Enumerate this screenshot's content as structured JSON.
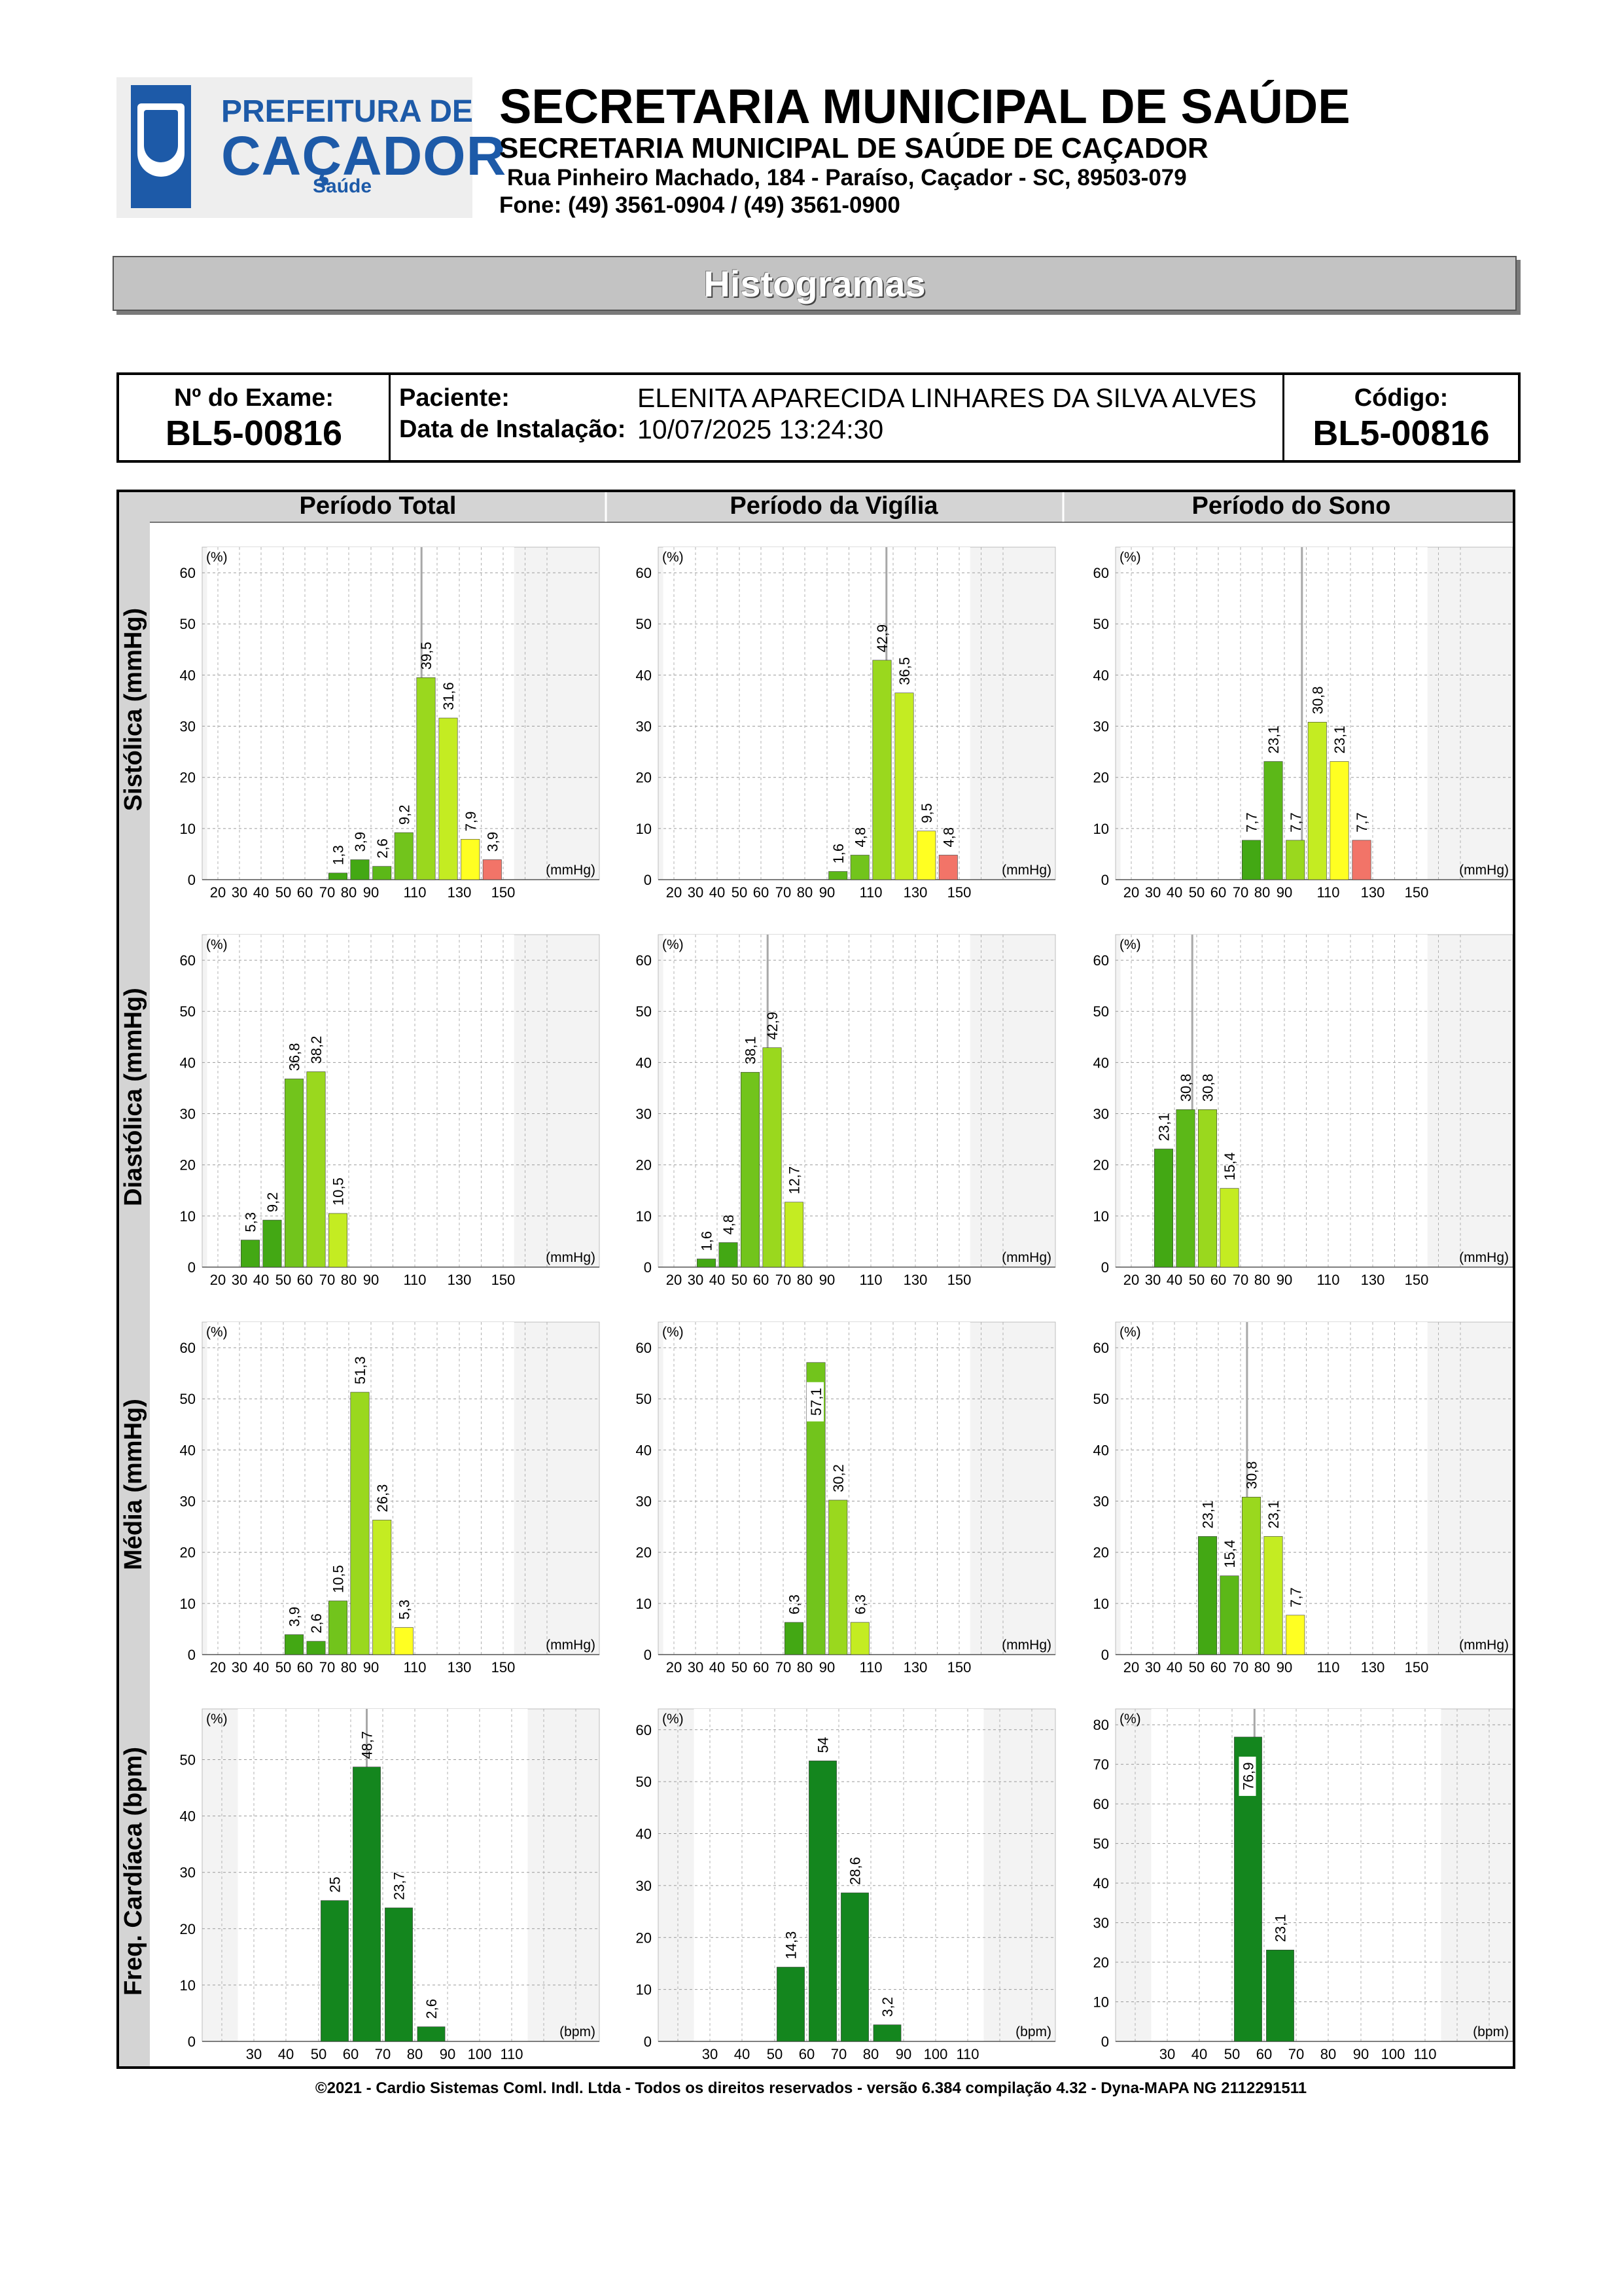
{
  "header": {
    "logo_line1": "PREFEITURA DE",
    "logo_line2": "CAÇADOR",
    "logo_line3": "Saúde",
    "title": "SECRETARIA MUNICIPAL DE SAÚDE",
    "subtitle": "SECRETARIA MUNICIPAL DE SAÚDE DE CAÇADOR",
    "address": "Rua Pinheiro Machado, 184 - Paraíso, Caçador - SC, 89503-079",
    "phone": "Fone: (49) 3561-0904  / (49) 3561-0900"
  },
  "banner": "Histogramas",
  "info": {
    "exam_label": "Nº do Exame:",
    "exam_value": "BL5-00816",
    "patient_label": "Paciente:",
    "patient_value": "ELENITA APARECIDA LINHARES DA SILVA ALVES",
    "install_label": "Data de Instalação:",
    "install_value": "10/07/2025 13:24:30",
    "code_label": "Código:",
    "code_value": "BL5-00816"
  },
  "columns": [
    "Período Total",
    "Período da Vigília",
    "Período do Sono"
  ],
  "rows": [
    {
      "label": "Sistólica (mmHg)",
      "unit": "(mmHg)",
      "ticks": [
        "20",
        "30",
        "40",
        "50",
        "60",
        "70",
        "80",
        "90",
        "110",
        "130",
        "150"
      ]
    },
    {
      "label": "Diastólica (mmHg)",
      "unit": "(mmHg)",
      "ticks": [
        "20",
        "30",
        "40",
        "50",
        "60",
        "70",
        "80",
        "90",
        "110",
        "130",
        "150"
      ]
    },
    {
      "label": "Média (mmHg)",
      "unit": "(mmHg)",
      "ticks": [
        "20",
        "30",
        "40",
        "50",
        "60",
        "70",
        "80",
        "90",
        "110",
        "130",
        "150"
      ]
    },
    {
      "label": "Freq. Cardíaca (bpm)",
      "unit": "(bpm)",
      "ticks": [
        "30",
        "40",
        "50",
        "60",
        "70",
        "80",
        "90",
        "100",
        "110"
      ]
    }
  ],
  "y_unit": "(%)",
  "chart_data": [
    {
      "type": "bar",
      "row": "Sistólica (mmHg)",
      "column": "Período Total",
      "ylim": [
        0,
        65
      ],
      "yticks": [
        0,
        10,
        20,
        30,
        40,
        50,
        60
      ],
      "bars": [
        {
          "x": 70,
          "value": 1.3,
          "color": "#43a814"
        },
        {
          "x": 80,
          "value": 3.9,
          "color": "#43a814"
        },
        {
          "x": 90,
          "value": 2.6,
          "color": "#5cb818"
        },
        {
          "x": 100,
          "value": 9.2,
          "color": "#72c41c"
        },
        {
          "x": 110,
          "value": 39.5,
          "color": "#9ad81e"
        },
        {
          "x": 120,
          "value": 31.6,
          "color": "#c4ec22"
        },
        {
          "x": 130,
          "value": 7.9,
          "color": "#ffff22"
        },
        {
          "x": 140,
          "value": 3.9,
          "color": "#f27468"
        }
      ],
      "labels": [
        "1,3",
        "3,9",
        "2,6",
        "9,2",
        "39,5",
        "31,6",
        "7,9",
        "3,9"
      ],
      "mean_line": 113
    },
    {
      "type": "bar",
      "row": "Sistólica (mmHg)",
      "column": "Período da Vigília",
      "ylim": [
        0,
        65
      ],
      "yticks": [
        0,
        10,
        20,
        30,
        40,
        50,
        60
      ],
      "bars": [
        {
          "x": 90,
          "value": 1.6,
          "color": "#5cb818"
        },
        {
          "x": 100,
          "value": 4.8,
          "color": "#72c41c"
        },
        {
          "x": 110,
          "value": 42.9,
          "color": "#9ad81e"
        },
        {
          "x": 120,
          "value": 36.5,
          "color": "#c4ec22"
        },
        {
          "x": 130,
          "value": 9.5,
          "color": "#ffff22"
        },
        {
          "x": 140,
          "value": 4.8,
          "color": "#f27468"
        }
      ],
      "labels": [
        "1,6",
        "4,8",
        "42,9",
        "36,5",
        "9,5",
        "4,8"
      ],
      "mean_line": 117
    },
    {
      "type": "bar",
      "row": "Sistólica (mmHg)",
      "column": "Período do Sono",
      "ylim": [
        0,
        65
      ],
      "yticks": [
        0,
        10,
        20,
        30,
        40,
        50,
        60
      ],
      "bars": [
        {
          "x": 70,
          "value": 7.7,
          "color": "#43a814"
        },
        {
          "x": 80,
          "value": 23.1,
          "color": "#5cb818"
        },
        {
          "x": 90,
          "value": 7.7,
          "color": "#9ad81e"
        },
        {
          "x": 100,
          "value": 30.8,
          "color": "#c4ec22"
        },
        {
          "x": 110,
          "value": 23.1,
          "color": "#ffff22"
        },
        {
          "x": 120,
          "value": 7.7,
          "color": "#f27468"
        }
      ],
      "labels": [
        "7,7",
        "23,1",
        "7,7",
        "30,8",
        "23,1",
        "7,7"
      ],
      "mean_line": 98
    },
    {
      "type": "bar",
      "row": "Diastólica (mmHg)",
      "column": "Período Total",
      "ylim": [
        0,
        65
      ],
      "yticks": [
        0,
        10,
        20,
        30,
        40,
        50,
        60
      ],
      "bars": [
        {
          "x": 30,
          "value": 5.3,
          "color": "#43a814"
        },
        {
          "x": 40,
          "value": 9.2,
          "color": "#43a814"
        },
        {
          "x": 50,
          "value": 36.8,
          "color": "#72c41c"
        },
        {
          "x": 60,
          "value": 38.2,
          "color": "#9ad81e"
        },
        {
          "x": 70,
          "value": 10.5,
          "color": "#c4ec22"
        }
      ],
      "labels": [
        "5,3",
        "9,2",
        "36,8",
        "38,2",
        "10,5"
      ],
      "mean_line": null
    },
    {
      "type": "bar",
      "row": "Diastólica (mmHg)",
      "column": "Período da Vigília",
      "ylim": [
        0,
        65
      ],
      "yticks": [
        0,
        10,
        20,
        30,
        40,
        50,
        60
      ],
      "bars": [
        {
          "x": 30,
          "value": 1.6,
          "color": "#43a814"
        },
        {
          "x": 40,
          "value": 4.8,
          "color": "#43a814"
        },
        {
          "x": 50,
          "value": 38.1,
          "color": "#72c41c"
        },
        {
          "x": 60,
          "value": 42.9,
          "color": "#9ad81e"
        },
        {
          "x": 70,
          "value": 12.7,
          "color": "#c4ec22"
        }
      ],
      "labels": [
        "1,6",
        "4,8",
        "38,1",
        "42,9",
        "12,7"
      ],
      "mean_line": 63
    },
    {
      "type": "bar",
      "row": "Diastólica (mmHg)",
      "column": "Período do Sono",
      "ylim": [
        0,
        65
      ],
      "yticks": [
        0,
        10,
        20,
        30,
        40,
        50,
        60
      ],
      "bars": [
        {
          "x": 30,
          "value": 23.1,
          "color": "#43a814"
        },
        {
          "x": 40,
          "value": 30.8,
          "color": "#5cb818"
        },
        {
          "x": 50,
          "value": 30.8,
          "color": "#9ad81e"
        },
        {
          "x": 60,
          "value": 15.4,
          "color": "#c4ec22"
        }
      ],
      "labels": [
        "23,1",
        "30,8",
        "30,8",
        "15,4"
      ],
      "mean_line": 48
    },
    {
      "type": "bar",
      "row": "Média (mmHg)",
      "column": "Período Total",
      "ylim": [
        0,
        65
      ],
      "yticks": [
        0,
        10,
        20,
        30,
        40,
        50,
        60
      ],
      "bars": [
        {
          "x": 50,
          "value": 3.9,
          "color": "#43a814"
        },
        {
          "x": 60,
          "value": 2.6,
          "color": "#43a814"
        },
        {
          "x": 70,
          "value": 10.5,
          "color": "#72c41c"
        },
        {
          "x": 80,
          "value": 51.3,
          "color": "#9ad81e"
        },
        {
          "x": 90,
          "value": 26.3,
          "color": "#c4ec22"
        },
        {
          "x": 100,
          "value": 5.3,
          "color": "#ffff22"
        }
      ],
      "labels": [
        "3,9",
        "2,6",
        "10,5",
        "51,3",
        "26,3",
        "5,3"
      ],
      "mean_line": null
    },
    {
      "type": "bar",
      "row": "Média (mmHg)",
      "column": "Período da Vigília",
      "ylim": [
        0,
        65
      ],
      "yticks": [
        0,
        10,
        20,
        30,
        40,
        50,
        60
      ],
      "bars": [
        {
          "x": 70,
          "value": 6.3,
          "color": "#43a814"
        },
        {
          "x": 80,
          "value": 57.1,
          "color": "#72c41c"
        },
        {
          "x": 90,
          "value": 30.2,
          "color": "#9ad81e"
        },
        {
          "x": 100,
          "value": 6.3,
          "color": "#c4ec22"
        }
      ],
      "labels": [
        "6,3",
        "57,1",
        "30,2",
        "6,3"
      ],
      "mean_line": null
    },
    {
      "type": "bar",
      "row": "Média (mmHg)",
      "column": "Período do Sono",
      "ylim": [
        0,
        65
      ],
      "yticks": [
        0,
        10,
        20,
        30,
        40,
        50,
        60
      ],
      "bars": [
        {
          "x": 50,
          "value": 23.1,
          "color": "#43a814"
        },
        {
          "x": 60,
          "value": 15.4,
          "color": "#5cb818"
        },
        {
          "x": 70,
          "value": 30.8,
          "color": "#9ad81e"
        },
        {
          "x": 80,
          "value": 23.1,
          "color": "#c4ec22"
        },
        {
          "x": 90,
          "value": 7.7,
          "color": "#ffff22"
        }
      ],
      "labels": [
        "23,1",
        "15,4",
        "30,8",
        "23,1",
        "7,7"
      ],
      "mean_line": 73
    },
    {
      "type": "bar",
      "row": "Freq. Cardíaca (bpm)",
      "column": "Período Total",
      "ylim": [
        0,
        59
      ],
      "yticks": [
        0,
        10,
        20,
        30,
        40,
        50
      ],
      "bars": [
        {
          "x": 50,
          "value": 25,
          "color": "#14861e"
        },
        {
          "x": 60,
          "value": 48.7,
          "color": "#14861e"
        },
        {
          "x": 70,
          "value": 23.7,
          "color": "#14861e"
        },
        {
          "x": 80,
          "value": 2.6,
          "color": "#14861e"
        }
      ],
      "labels": [
        "25",
        "48,7",
        "23,7",
        "2,6"
      ],
      "mean_line": 65
    },
    {
      "type": "bar",
      "row": "Freq. Cardíaca (bpm)",
      "column": "Período da Vigília",
      "ylim": [
        0,
        64
      ],
      "yticks": [
        0,
        10,
        20,
        30,
        40,
        50,
        60
      ],
      "bars": [
        {
          "x": 50,
          "value": 14.3,
          "color": "#14861e"
        },
        {
          "x": 60,
          "value": 54,
          "color": "#14861e"
        },
        {
          "x": 70,
          "value": 28.6,
          "color": "#14861e"
        },
        {
          "x": 80,
          "value": 3.2,
          "color": "#14861e"
        }
      ],
      "labels": [
        "14,3",
        "54",
        "28,6",
        "3,2"
      ],
      "mean_line": null
    },
    {
      "type": "bar",
      "row": "Freq. Cardíaca (bpm)",
      "column": "Período do Sono",
      "ylim": [
        0,
        84
      ],
      "yticks": [
        0,
        10,
        20,
        30,
        40,
        50,
        60,
        70,
        80
      ],
      "bars": [
        {
          "x": 50,
          "value": 76.9,
          "color": "#14861e"
        },
        {
          "x": 60,
          "value": 23.1,
          "color": "#14861e"
        }
      ],
      "labels": [
        "76,9",
        "23,1"
      ],
      "mean_line": 57
    }
  ],
  "footer": "©2021 - Cardio Sistemas Coml. Indl. Ltda - Todos os direitos reservados - versão 6.384 compilação 4.32 - Dyna-MAPA NG 2112291511"
}
